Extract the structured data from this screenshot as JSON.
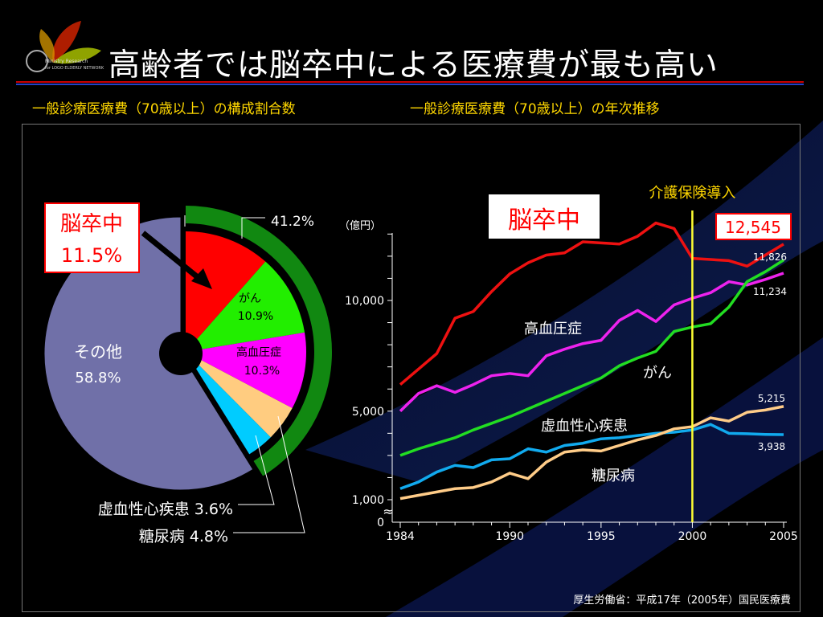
{
  "slide": {
    "title": "高齢者では脳卒中による医療費が最も高い",
    "subtitle_left": "一般診療医療費（70歳以上）の構成割合数",
    "subtitle_right": "一般診療医療費（70歳以上）の年次推移",
    "source": "厚生労働省：平成17年（2005年）国民医療費",
    "logo_text_1": "Ministry Research",
    "logo_text_2": "for LOGO ELDERLY NETWORK",
    "colors": {
      "accent_red": "#ff0000",
      "title_rule_blue": "#2340c8",
      "subtitle": "#ffd700",
      "vline": "#ffff33"
    }
  },
  "chart_data": [
    {
      "type": "pie",
      "slices": [
        {
          "label": "脳卒中",
          "value": 11.5,
          "value_label": "11.5%",
          "color": "#ff0000"
        },
        {
          "label": "がん",
          "value": 10.9,
          "value_label": "10.9%",
          "color": "#22ee00"
        },
        {
          "label": "高血圧症",
          "value": 10.3,
          "value_label": "10.3%",
          "color": "#ff00ff"
        },
        {
          "label": "糖尿病",
          "value": 4.8,
          "value_label": "4.8%",
          "color": "#ffcc80"
        },
        {
          "label": "虚血性心疾患",
          "value": 3.6,
          "value_label": "3.6%",
          "color": "#00ccff"
        },
        {
          "label": "その他",
          "value": 58.8,
          "value_label": "58.8%",
          "color": "#7070a8"
        }
      ],
      "group_bracket": {
        "value_label": "41.2%",
        "color": "#118811"
      },
      "labels": {
        "stroke_callout_name": "脳卒中",
        "stroke_callout_value": "11.5%",
        "ihd_label": "虚血性心疾患 3.6%",
        "diabetes_label": "糖尿病 4.8%"
      }
    },
    {
      "type": "line",
      "ylabel": "（億円）",
      "x_ticks": [
        "1984",
        "1990",
        "1995",
        "2000",
        "2005"
      ],
      "y_ticks": [
        "0",
        "1,000",
        "5,000",
        "10,000"
      ],
      "x_range": [
        1984,
        2005
      ],
      "y_range_upper": [
        1000,
        13000
      ],
      "broken_axis": true,
      "annotation_vline": {
        "x": 2000,
        "label": "介護保険導入"
      },
      "x": [
        1984,
        1985,
        1986,
        1987,
        1988,
        1989,
        1990,
        1991,
        1992,
        1993,
        1994,
        1995,
        1996,
        1997,
        1998,
        1999,
        2000,
        2001,
        2002,
        2003,
        2004,
        2005
      ],
      "series": [
        {
          "name": "脳卒中",
          "color": "#ee1111",
          "values": [
            6200,
            6900,
            7600,
            9200,
            9500,
            10400,
            11200,
            11700,
            12050,
            12150,
            12650,
            12600,
            12550,
            12900,
            13500,
            13250,
            11900,
            11850,
            11800,
            11550,
            12050,
            12545
          ]
        },
        {
          "name": "高血圧症",
          "color": "#ee22ee",
          "values": [
            5000,
            5800,
            6150,
            5850,
            6200,
            6600,
            6700,
            6600,
            7500,
            7800,
            8050,
            8200,
            9100,
            9550,
            9050,
            9800,
            10100,
            10350,
            10850,
            10700,
            10950,
            11234
          ]
        },
        {
          "name": "がん",
          "color": "#22dd22",
          "values": [
            3000,
            3300,
            3550,
            3800,
            4150,
            4450,
            4750,
            5100,
            5450,
            5800,
            6150,
            6500,
            7050,
            7400,
            7700,
            8600,
            8800,
            8950,
            9700,
            10850,
            11300,
            11826
          ]
        },
        {
          "name": "虚血性心疾患",
          "color": "#11aaee",
          "values": [
            1500,
            1800,
            2250,
            2550,
            2450,
            2800,
            2850,
            3300,
            3150,
            3450,
            3550,
            3750,
            3800,
            3900,
            4000,
            4050,
            4150,
            4400,
            4000,
            3980,
            3950,
            3938
          ]
        },
        {
          "name": "糖尿病",
          "color": "#ffcc88",
          "values": [
            1050,
            1200,
            1350,
            1500,
            1550,
            1800,
            2200,
            1950,
            2700,
            3150,
            3250,
            3200,
            3450,
            3700,
            3900,
            4200,
            4300,
            4700,
            4550,
            4950,
            5050,
            5215
          ]
        }
      ],
      "end_labels": {
        "stroke": "12,545",
        "cancer": "11,826",
        "hypertension": "11,234",
        "diabetes": "5,215",
        "ihd": "3,938"
      }
    }
  ]
}
